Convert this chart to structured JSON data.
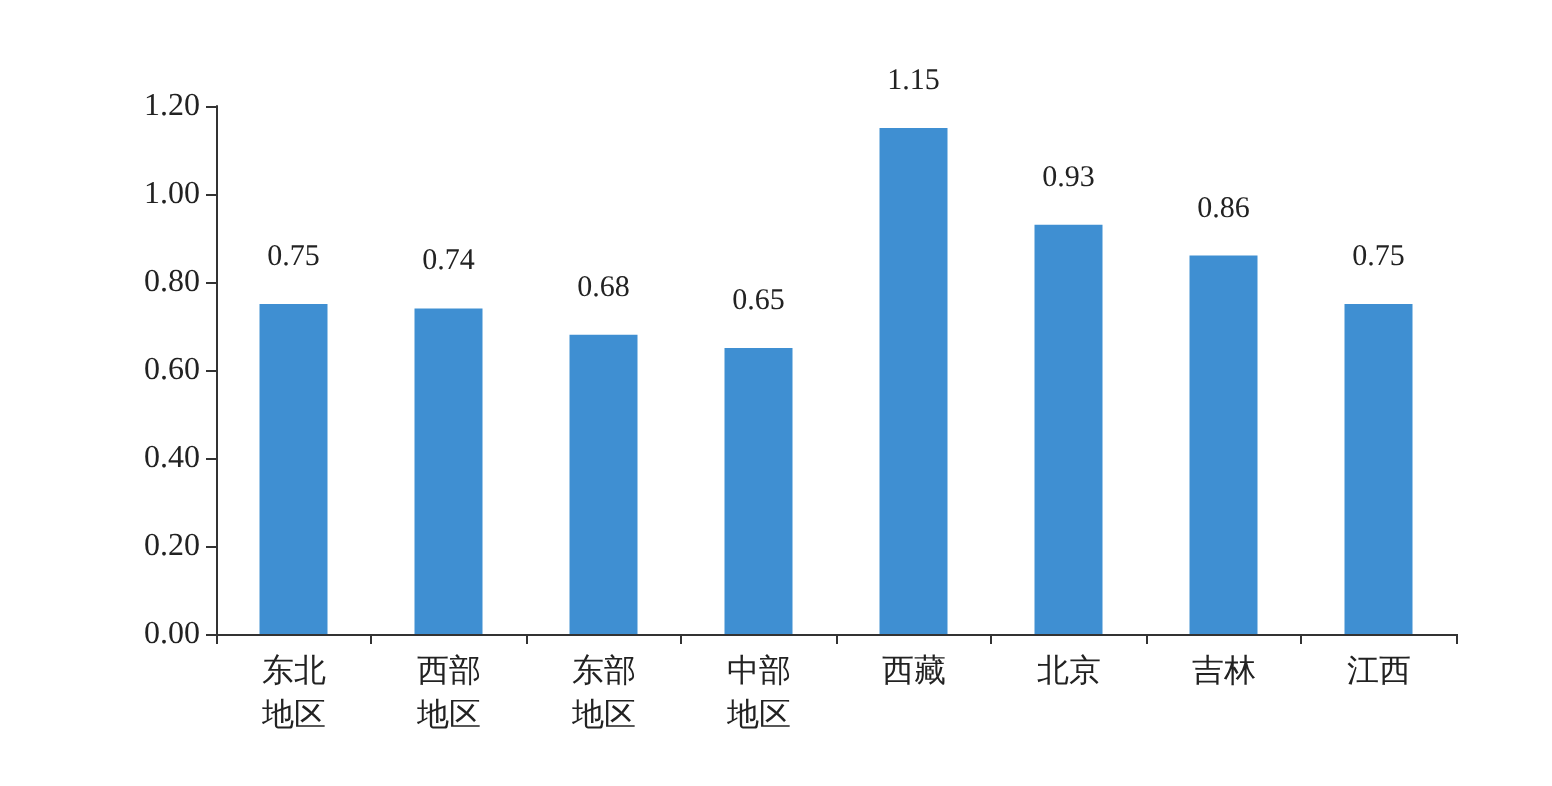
{
  "chart_data": {
    "type": "bar",
    "categories": [
      "东北地区",
      "西部地区",
      "东部地区",
      "中部地区",
      "西藏",
      "北京",
      "吉林",
      "江西"
    ],
    "values": [
      0.75,
      0.74,
      0.68,
      0.65,
      1.15,
      0.93,
      0.86,
      0.75
    ],
    "color": "#3f8fd2",
    "ylim": [
      0,
      1.2
    ],
    "yticks": [
      {
        "value": 0,
        "label": "0.00"
      },
      {
        "value": 0.2,
        "label": "0.20"
      },
      {
        "value": 0.4,
        "label": "0.40"
      },
      {
        "value": 0.6,
        "label": "0.60"
      },
      {
        "value": 0.8,
        "label": "0.80"
      },
      {
        "value": 1,
        "label": "1.00"
      },
      {
        "value": 1.2,
        "label": "1.20"
      }
    ],
    "data_labels": true,
    "grid": false
  }
}
